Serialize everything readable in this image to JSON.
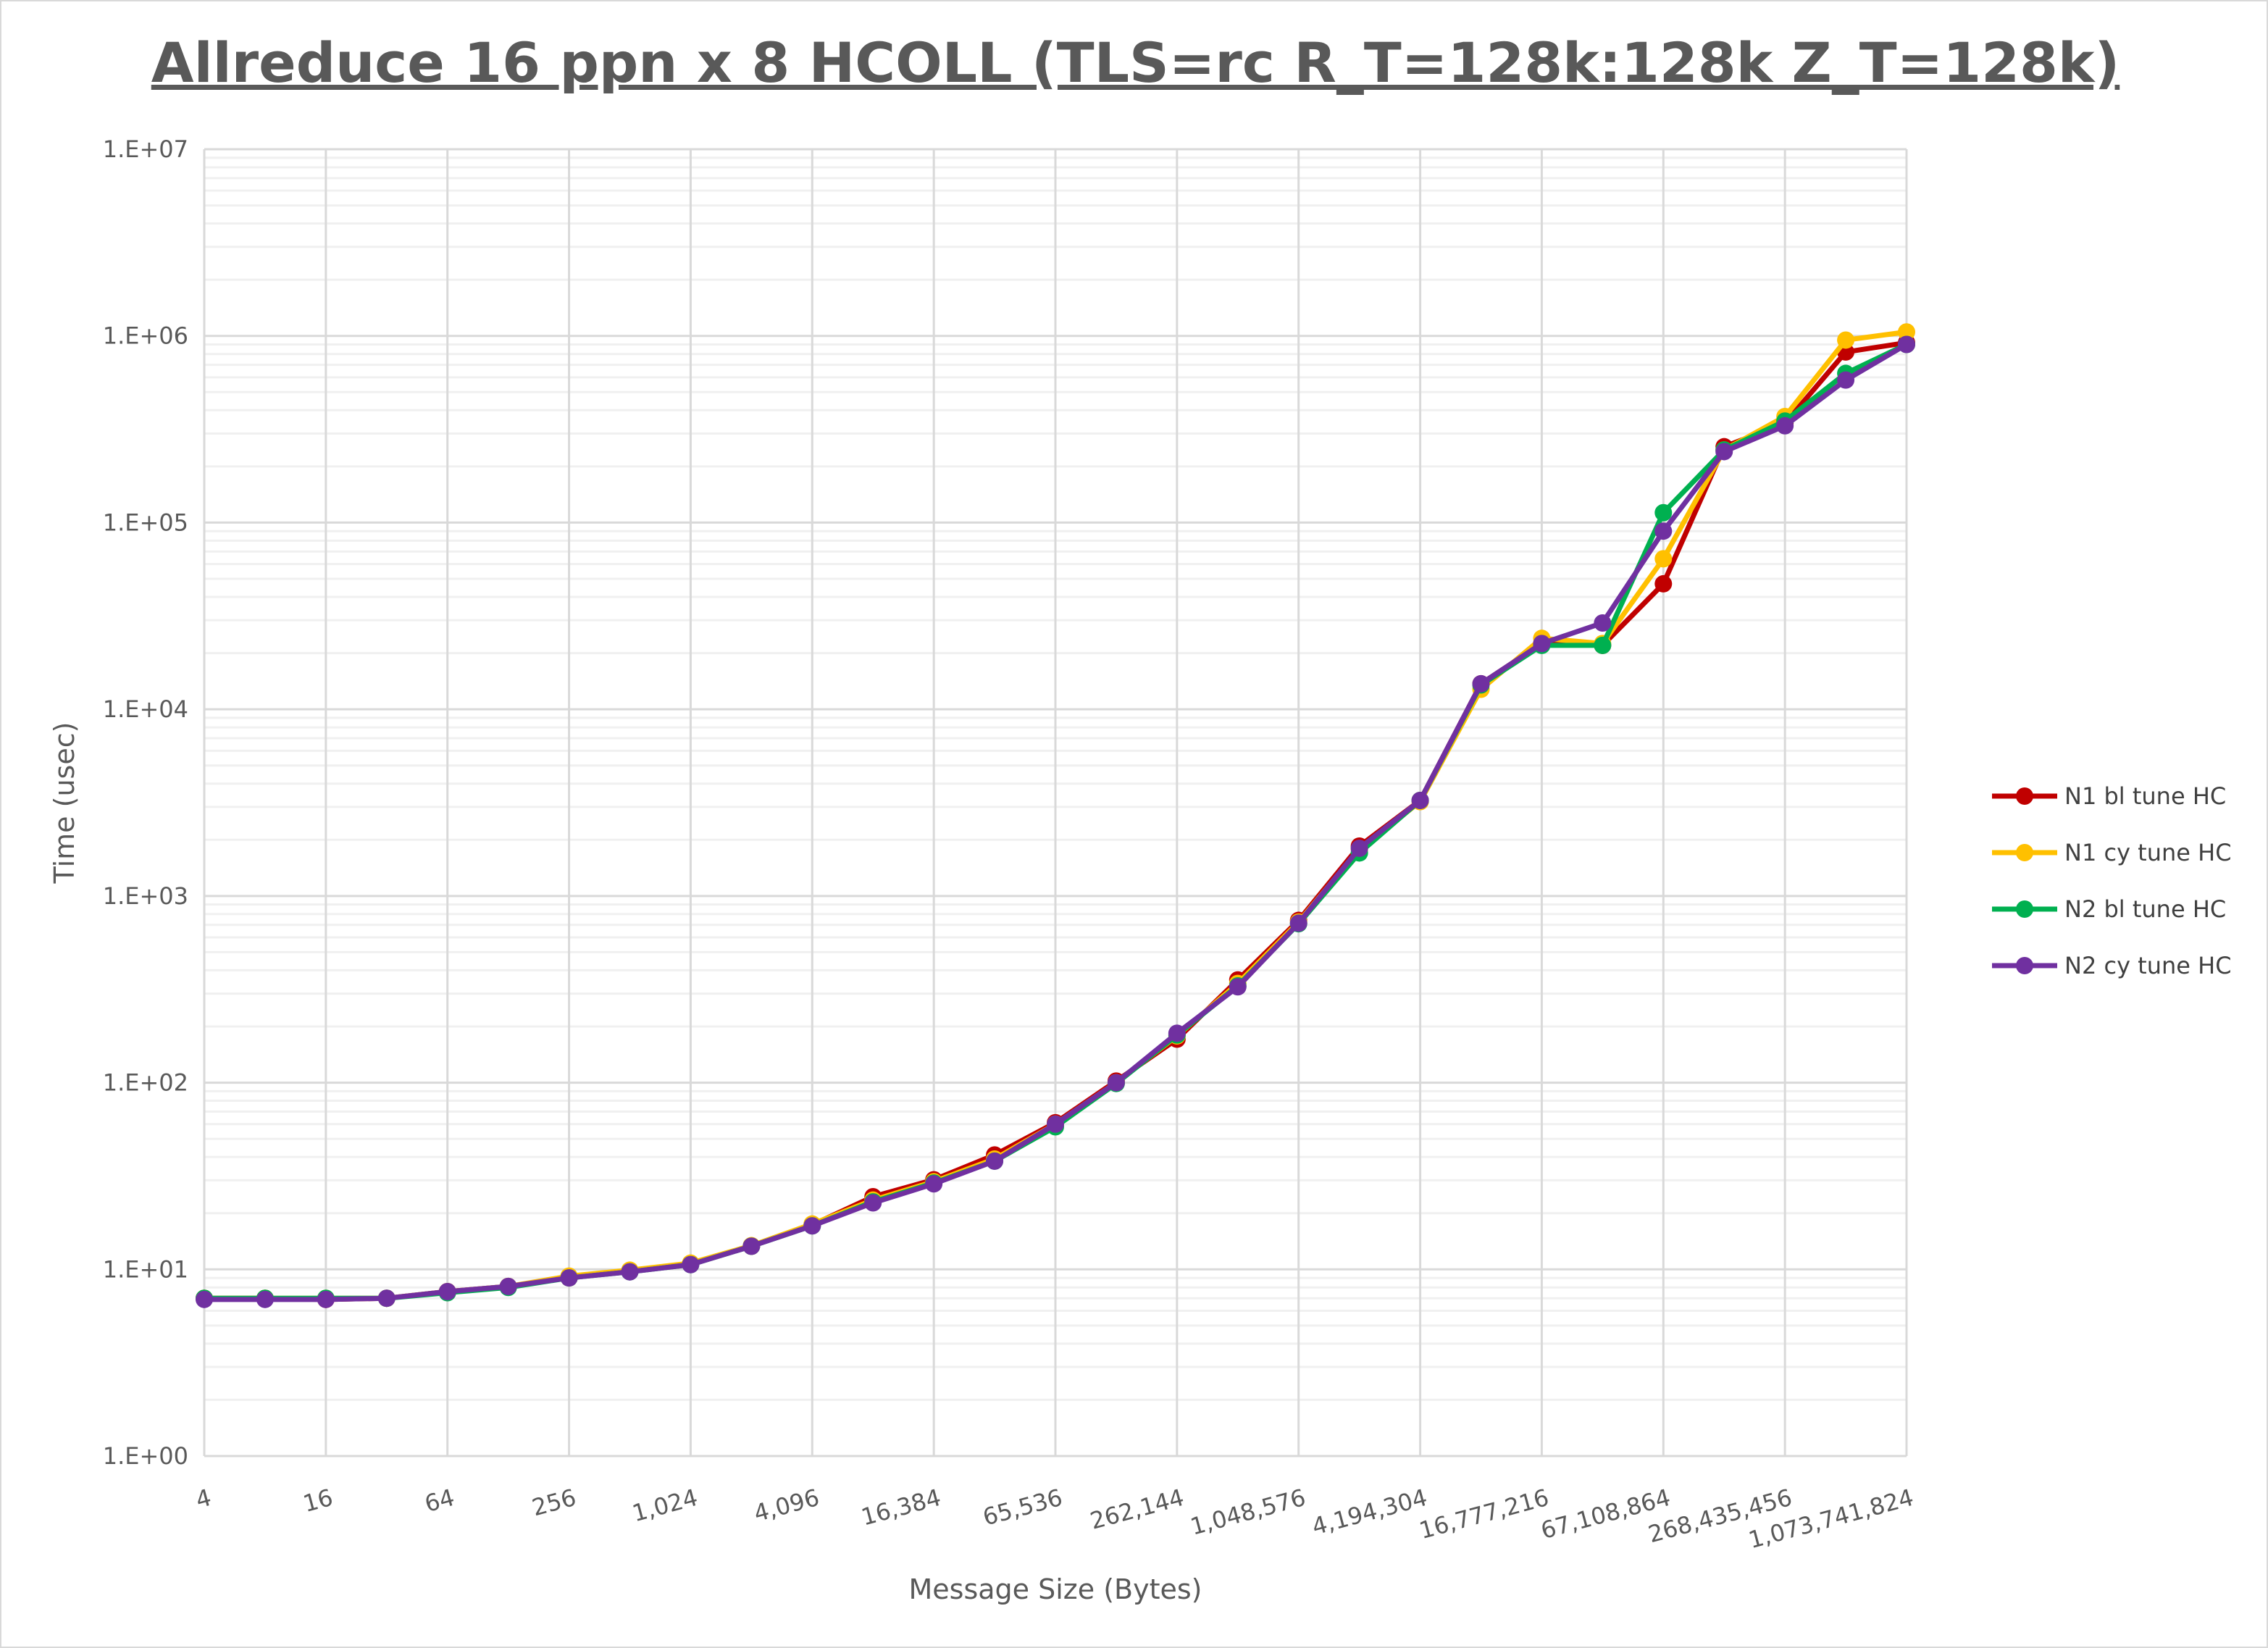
{
  "chart_data": {
    "type": "line",
    "title": "Allreduce 16 ppn x 8 HCOLL (TLS=rc R_T=128k:128k Z_T=128k)",
    "xlabel": "Message Size (Bytes)",
    "ylabel": "Time (usec)",
    "x_scale": "log2",
    "y_scale": "log10",
    "ylim": [
      1,
      10000000
    ],
    "grid": true,
    "legend_position": "right",
    "x": [
      4,
      8,
      16,
      32,
      64,
      128,
      256,
      512,
      1024,
      2048,
      4096,
      8192,
      16384,
      32768,
      65536,
      131072,
      262144,
      524288,
      1048576,
      2097152,
      4194304,
      8388608,
      16777216,
      33554432,
      67108864,
      134217728,
      268435456,
      536870912,
      1073741824
    ],
    "x_tick_labels": [
      "4",
      "16",
      "64",
      "256",
      "1,024",
      "4,096",
      "16,384",
      "65,536",
      "262,144",
      "1,048,576",
      "4,194,304",
      "16,777,216",
      "67,108,864",
      "268,435,456",
      "1,073,741,824"
    ],
    "y_tick_labels": [
      "1.E+00",
      "1.E+01",
      "1.E+02",
      "1.E+03",
      "1.E+04",
      "1.E+05",
      "1.E+06",
      "1.E+07"
    ],
    "series": [
      {
        "name": "N1 bl tune HC",
        "color": "#c00000",
        "values": [
          7.0,
          7.0,
          6.9,
          7.0,
          7.6,
          8.1,
          9.0,
          9.8,
          10.7,
          13.3,
          17.3,
          24.5,
          30.2,
          41,
          61,
          102,
          171,
          355,
          740,
          1850,
          3250,
          13700,
          22500,
          22000,
          47000,
          255000,
          340000,
          820000,
          920000
        ]
      },
      {
        "name": "N1 cy tune HC",
        "color": "#ffc000",
        "values": [
          7.0,
          7.0,
          7.0,
          7.0,
          7.6,
          8.1,
          9.2,
          9.9,
          10.8,
          13.4,
          17.5,
          23.5,
          29.5,
          39,
          60,
          100,
          178,
          340,
          725,
          1780,
          3200,
          12800,
          24000,
          22500,
          64000,
          245000,
          370000,
          950000,
          1050000
        ]
      },
      {
        "name": "N2 bl tune HC",
        "color": "#00b050",
        "values": [
          7.0,
          7.0,
          7.0,
          7.0,
          7.5,
          8.0,
          9.0,
          9.7,
          10.6,
          13.3,
          17.1,
          23.0,
          29.0,
          38,
          58,
          99,
          180,
          330,
          710,
          1700,
          3250,
          13500,
          22000,
          22000,
          113000,
          245000,
          350000,
          630000,
          900000
        ]
      },
      {
        "name": "N2 cy tune HC",
        "color": "#7030a0",
        "values": [
          6.9,
          6.9,
          6.9,
          7.0,
          7.6,
          8.1,
          9.0,
          9.7,
          10.6,
          13.3,
          17.1,
          22.7,
          28.7,
          38,
          60,
          100,
          184,
          326,
          715,
          1800,
          3250,
          13700,
          22500,
          29000,
          90000,
          240000,
          330000,
          580000,
          900000
        ]
      }
    ]
  }
}
